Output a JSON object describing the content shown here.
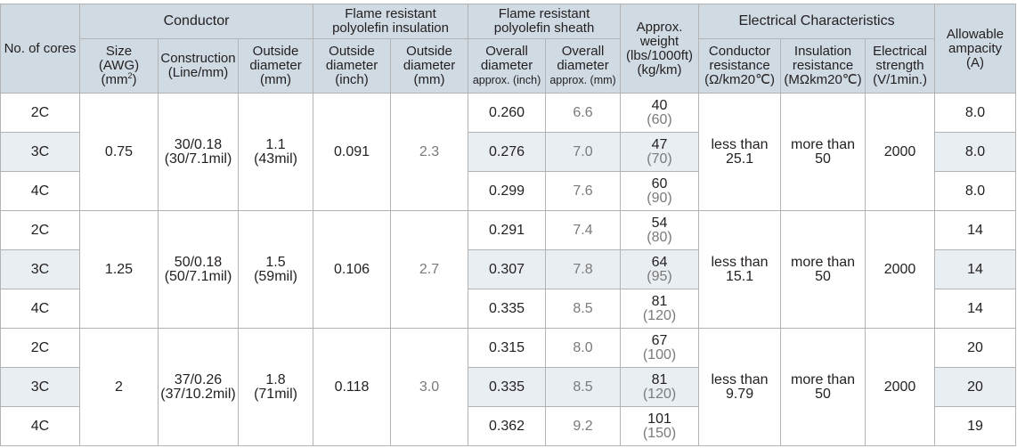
{
  "headers": {
    "cores": "No. of cores",
    "conductor": "Conductor",
    "size": [
      "Size",
      "(AWG)",
      "(mm",
      ")"
    ],
    "size_sup": "2",
    "construction": [
      "Construction",
      "(Line/mm)"
    ],
    "conductor_od": [
      "Outside",
      "diameter",
      "(mm)"
    ],
    "insulation": [
      "Flame resistant",
      "polyolefin insulation"
    ],
    "ins_od_inch": [
      "Outside",
      "diameter",
      "(inch)"
    ],
    "ins_od_mm": [
      "Outside",
      "diameter",
      "(mm)"
    ],
    "sheath": [
      "Flame resistant",
      "polyolefin sheath"
    ],
    "sheath_od_inch": [
      "Overall",
      "diameter",
      "approx. (inch)"
    ],
    "sheath_od_mm": [
      "Overall",
      "diameter",
      "approx. (mm)"
    ],
    "weight": [
      "Approx.",
      "weight",
      "(lbs/1000ft)",
      "(kg/km)"
    ],
    "electrical": "Electrical Characteristics",
    "cond_res": [
      "Conductor",
      "resistance",
      "(Ω/km20℃)"
    ],
    "ins_res": [
      "Insulation",
      "resistance",
      "(MΩkm20℃)"
    ],
    "elec_strength": [
      "Electrical",
      "strength",
      "(V/1min.)"
    ],
    "ampacity": [
      "Allowable",
      "ampacity",
      "(A)"
    ]
  },
  "groups": [
    {
      "size": "0.75",
      "construction": [
        "30/0.18",
        "(30/7.1mil)"
      ],
      "conductor_od": [
        "1.1",
        "(43mil)"
      ],
      "ins_od_inch": "0.091",
      "ins_od_mm": "2.3",
      "cond_res": [
        "less than",
        "25.1"
      ],
      "ins_res": [
        "more than",
        "50"
      ],
      "elec_strength": "2000",
      "rows": [
        {
          "cores": "2C",
          "od_inch": "0.260",
          "od_mm": "6.6",
          "w_lbs": "40",
          "w_kg": "(60)",
          "amp": "8.0"
        },
        {
          "cores": "3C",
          "od_inch": "0.276",
          "od_mm": "7.0",
          "w_lbs": "47",
          "w_kg": "(70)",
          "amp": "8.0"
        },
        {
          "cores": "4C",
          "od_inch": "0.299",
          "od_mm": "7.6",
          "w_lbs": "60",
          "w_kg": "(90)",
          "amp": "8.0"
        }
      ]
    },
    {
      "size": "1.25",
      "construction": [
        "50/0.18",
        "(50/7.1mil)"
      ],
      "conductor_od": [
        "1.5",
        "(59mil)"
      ],
      "ins_od_inch": "0.106",
      "ins_od_mm": "2.7",
      "cond_res": [
        "less than",
        "15.1"
      ],
      "ins_res": [
        "more than",
        "50"
      ],
      "elec_strength": "2000",
      "rows": [
        {
          "cores": "2C",
          "od_inch": "0.291",
          "od_mm": "7.4",
          "w_lbs": "54",
          "w_kg": "(80)",
          "amp": "14"
        },
        {
          "cores": "3C",
          "od_inch": "0.307",
          "od_mm": "7.8",
          "w_lbs": "64",
          "w_kg": "(95)",
          "amp": "14"
        },
        {
          "cores": "4C",
          "od_inch": "0.335",
          "od_mm": "8.5",
          "w_lbs": "81",
          "w_kg": "(120)",
          "amp": "14"
        }
      ]
    },
    {
      "size": "2",
      "construction": [
        "37/0.26",
        "(37/10.2mil)"
      ],
      "conductor_od": [
        "1.8",
        "(71mil)"
      ],
      "ins_od_inch": "0.118",
      "ins_od_mm": "3.0",
      "cond_res": [
        "less than",
        "9.79"
      ],
      "ins_res": [
        "more than",
        "50"
      ],
      "elec_strength": "2000",
      "rows": [
        {
          "cores": "2C",
          "od_inch": "0.315",
          "od_mm": "8.0",
          "w_lbs": "67",
          "w_kg": "(100)",
          "amp": "20"
        },
        {
          "cores": "3C",
          "od_inch": "0.335",
          "od_mm": "8.5",
          "w_lbs": "81",
          "w_kg": "(120)",
          "amp": "20"
        },
        {
          "cores": "4C",
          "od_inch": "0.362",
          "od_mm": "9.2",
          "w_lbs": "101",
          "w_kg": "(150)",
          "amp": "19"
        }
      ]
    }
  ]
}
